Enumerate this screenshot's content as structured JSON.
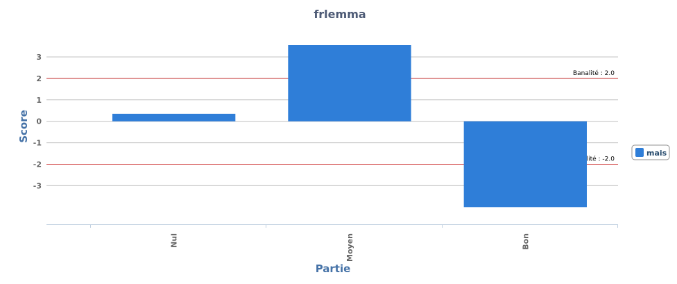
{
  "chart_data": {
    "type": "bar",
    "title": "frlemma",
    "xlabel": "Partie",
    "ylabel": "Score",
    "categories": [
      "Nul",
      "Moyen",
      "Bon"
    ],
    "series": [
      {
        "name": "mais",
        "values": [
          0.35,
          3.55,
          -4.0
        ],
        "color": "#2f7ed8"
      }
    ],
    "yticks": [
      -3,
      -2,
      -1,
      0,
      1,
      2,
      3
    ],
    "ylim": [
      -4.8,
      3.55
    ],
    "grid": true,
    "legend_position": "right",
    "plot_lines": [
      {
        "value": 2.0,
        "label": "Banalité : 2.0",
        "color": "#cc3333"
      },
      {
        "value": -2.0,
        "label": "Banalité : -2.0",
        "color": "#cc3333"
      }
    ]
  },
  "colors": {
    "grid": "#c0c0c0",
    "axis": "#c0d0e0",
    "title": "#4d5a75",
    "axis_title": "#4572a7"
  }
}
